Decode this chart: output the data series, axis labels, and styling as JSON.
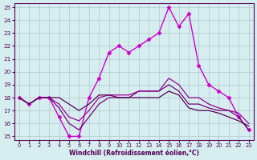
{
  "xlabel": "Windchill (Refroidissement éolien,°C)",
  "xlim": [
    -0.5,
    23.5
  ],
  "ylim": [
    14.7,
    25.3
  ],
  "yticks": [
    15,
    16,
    17,
    18,
    19,
    20,
    21,
    22,
    23,
    24,
    25
  ],
  "xticks": [
    0,
    1,
    2,
    3,
    4,
    5,
    6,
    7,
    8,
    9,
    10,
    11,
    12,
    13,
    14,
    15,
    16,
    17,
    18,
    19,
    20,
    21,
    22,
    23
  ],
  "bg_color": "#d6eef0",
  "grid_color": "#b0c8cc",
  "series": [
    {
      "x": [
        0,
        1,
        2,
        3,
        4,
        5,
        6,
        7,
        8,
        9,
        10,
        11,
        12,
        13,
        14,
        15,
        16,
        17,
        18,
        19,
        20,
        21,
        22,
        23
      ],
      "y": [
        18.0,
        17.5,
        18.0,
        18.0,
        16.5,
        15.0,
        15.0,
        18.0,
        19.5,
        21.5,
        22.0,
        21.5,
        22.0,
        22.5,
        23.0,
        25.0,
        23.5,
        24.5,
        20.5,
        19.0,
        18.5,
        18.0,
        16.5,
        15.5
      ],
      "color": "#cc00cc",
      "marker": "D",
      "markersize": 2.5,
      "linewidth": 1.0
    },
    {
      "x": [
        0,
        1,
        2,
        3,
        4,
        5,
        6,
        7,
        8,
        9,
        10,
        11,
        12,
        13,
        14,
        15,
        16,
        17,
        18,
        19,
        20,
        21,
        22,
        23
      ],
      "y": [
        18.0,
        17.5,
        18.0,
        18.0,
        17.2,
        16.0,
        15.5,
        16.5,
        17.5,
        18.0,
        18.0,
        18.0,
        18.5,
        18.5,
        18.5,
        19.0,
        18.5,
        17.5,
        17.5,
        17.2,
        17.0,
        17.0,
        16.5,
        15.5
      ],
      "color": "#770077",
      "marker": null,
      "markersize": 0,
      "linewidth": 0.9
    },
    {
      "x": [
        0,
        1,
        2,
        3,
        4,
        5,
        6,
        7,
        8,
        9,
        10,
        11,
        12,
        13,
        14,
        15,
        16,
        17,
        18,
        19,
        20,
        21,
        22,
        23
      ],
      "y": [
        18.0,
        17.5,
        18.0,
        18.0,
        17.5,
        16.5,
        16.2,
        17.0,
        18.0,
        18.2,
        18.2,
        18.2,
        18.5,
        18.5,
        18.5,
        19.5,
        19.0,
        18.0,
        18.0,
        17.5,
        17.2,
        17.0,
        16.8,
        16.0
      ],
      "color": "#990099",
      "marker": null,
      "markersize": 0,
      "linewidth": 0.9
    },
    {
      "x": [
        0,
        1,
        2,
        3,
        4,
        5,
        6,
        7,
        8,
        9,
        10,
        11,
        12,
        13,
        14,
        15,
        16,
        17,
        18,
        19,
        20,
        21,
        22,
        23
      ],
      "y": [
        18.0,
        17.5,
        18.0,
        18.0,
        18.0,
        17.5,
        17.0,
        17.5,
        18.2,
        18.2,
        18.0,
        18.0,
        18.0,
        18.0,
        18.0,
        18.5,
        18.2,
        17.2,
        17.0,
        17.0,
        16.8,
        16.5,
        16.2,
        15.8
      ],
      "color": "#550055",
      "marker": null,
      "markersize": 0,
      "linewidth": 0.9
    }
  ]
}
